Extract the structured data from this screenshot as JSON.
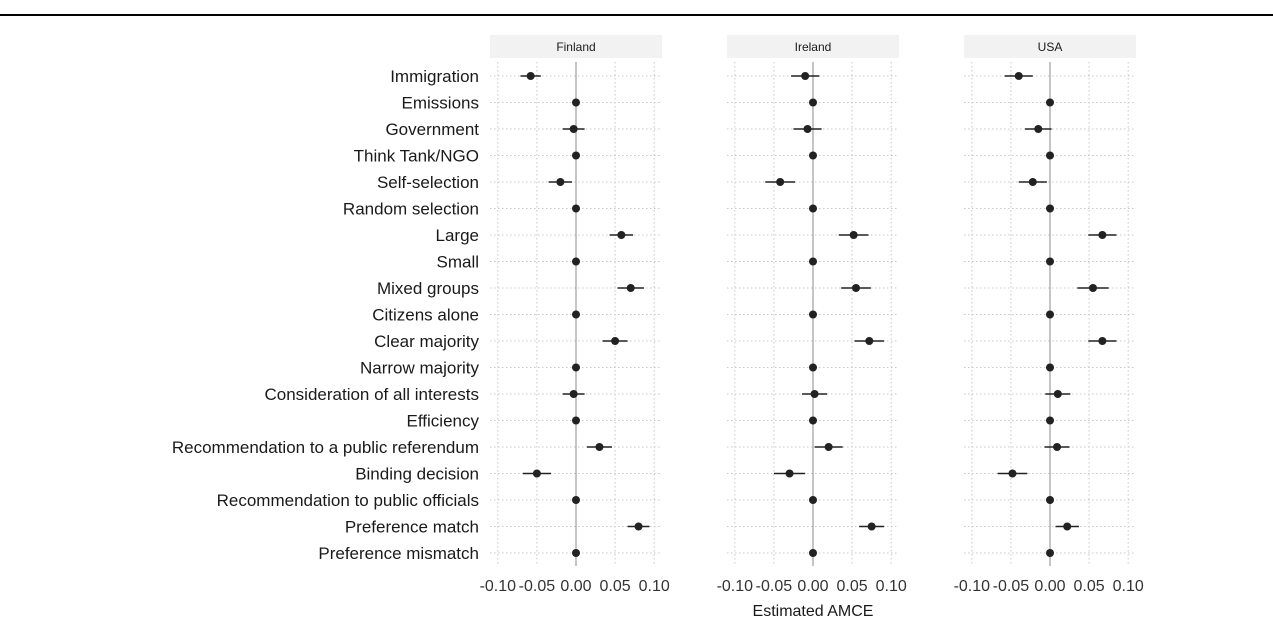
{
  "chart_data": {
    "type": "scatter",
    "xlabel": "Estimated AMCE",
    "ylabel": "",
    "xlim": [
      -0.11,
      0.11
    ],
    "xticks": [
      -0.1,
      -0.05,
      0.0,
      0.05,
      0.1
    ],
    "tick_labels": [
      "-0.10",
      "-0.05",
      "0.00",
      "0.05",
      "0.10"
    ],
    "grid": true,
    "reference_line": 0,
    "categories": [
      "Immigration",
      "Emissions",
      "Government",
      "Think Tank/NGO",
      "Self-selection",
      "Random selection",
      "Large",
      "Small",
      "Mixed groups",
      "Citizens alone",
      "Clear majority",
      "Narrow majority",
      "Consideration of all interests",
      "Efficiency",
      "Recommendation to a public referendum",
      "Binding decision",
      "Recommendation to public officials",
      "Preference match",
      "Preference mismatch"
    ],
    "panels": [
      {
        "name": "Finland",
        "estimates": [
          -0.058,
          0,
          -0.003,
          0,
          -0.02,
          0,
          0.058,
          0,
          0.07,
          0,
          0.05,
          0,
          -0.003,
          0,
          0.03,
          -0.05,
          0,
          0.08,
          0
        ],
        "ci_low": [
          -0.071,
          0,
          -0.017,
          0,
          -0.035,
          0,
          0.043,
          0,
          0.053,
          0,
          0.034,
          0,
          -0.017,
          0,
          0.014,
          -0.068,
          0,
          0.066,
          0
        ],
        "ci_high": [
          -0.045,
          0,
          0.011,
          0,
          -0.005,
          0,
          0.073,
          0,
          0.087,
          0,
          0.066,
          0,
          0.011,
          0,
          0.046,
          -0.032,
          0,
          0.094,
          0
        ]
      },
      {
        "name": "Ireland",
        "estimates": [
          -0.01,
          0,
          -0.007,
          0,
          -0.042,
          0,
          0.052,
          0,
          0.055,
          0,
          0.072,
          0,
          0.002,
          0,
          0.02,
          -0.03,
          0,
          0.075,
          0
        ],
        "ci_low": [
          -0.028,
          0,
          -0.025,
          0,
          -0.061,
          0,
          0.033,
          0,
          0.036,
          0,
          0.053,
          0,
          -0.014,
          0,
          0.002,
          -0.05,
          0,
          0.059,
          0
        ],
        "ci_high": [
          0.008,
          0,
          0.011,
          0,
          -0.023,
          0,
          0.071,
          0,
          0.074,
          0,
          0.091,
          0,
          0.018,
          0,
          0.038,
          -0.01,
          0,
          0.091,
          0
        ]
      },
      {
        "name": "USA",
        "estimates": [
          -0.04,
          0,
          -0.015,
          0,
          -0.022,
          0,
          0.067,
          0,
          0.055,
          0,
          0.067,
          0,
          0.01,
          0,
          0.009,
          -0.048,
          0,
          0.022,
          0
        ],
        "ci_low": [
          -0.058,
          0,
          -0.032,
          0,
          -0.04,
          0,
          0.049,
          0,
          0.035,
          0,
          0.049,
          0,
          -0.006,
          0,
          -0.007,
          -0.067,
          0,
          0.007,
          0
        ],
        "ci_high": [
          -0.022,
          0,
          0.002,
          0,
          -0.004,
          0,
          0.085,
          0,
          0.075,
          0,
          0.085,
          0,
          0.026,
          0,
          0.025,
          -0.029,
          0,
          0.037,
          0
        ]
      }
    ],
    "colors": {
      "point": "#222222",
      "strip_bg": "#f2f2f2",
      "grid": "#c8c8c8",
      "zero_line": "#a6a6a6",
      "text": "#1a1a1a",
      "axis_text": "#333333"
    }
  }
}
